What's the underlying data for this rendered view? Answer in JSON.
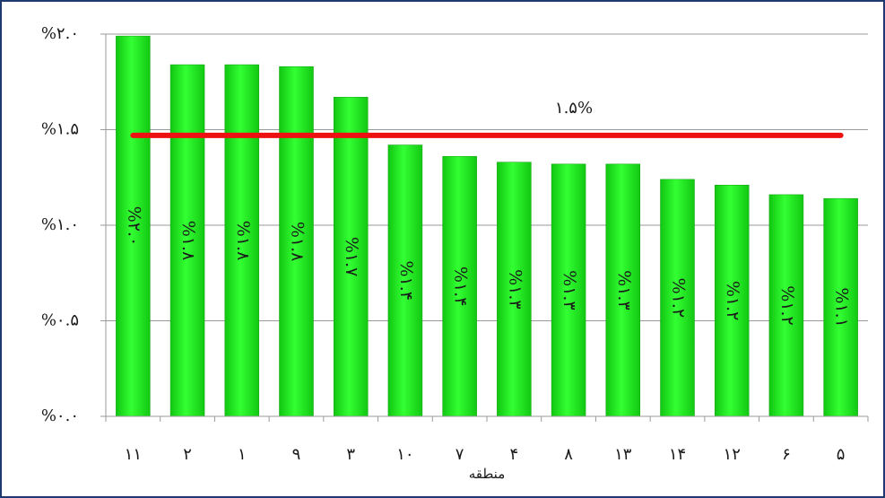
{
  "chart_data": {
    "type": "bar",
    "categories": [
      "۱۱",
      "۲",
      "۱",
      "۹",
      "۳",
      "۱۰",
      "۷",
      "۴",
      "۸",
      "۱۳",
      "۱۴",
      "۱۲",
      "۶",
      "۵"
    ],
    "values": [
      1.99,
      1.84,
      1.84,
      1.83,
      1.67,
      1.42,
      1.36,
      1.33,
      1.32,
      1.32,
      1.24,
      1.21,
      1.16,
      1.14
    ],
    "value_labels": [
      "%۲.۰",
      "%۱.۸",
      "%۱.۸",
      "%۱.۸",
      "%۱.۷",
      "%۱.۴",
      "%۱.۴",
      "%۱.۳",
      "%۱.۳",
      "%۱.۳",
      "%۱.۲",
      "%۱.۲",
      "%۱.۲",
      "%۱.۱"
    ],
    "color": "#22ee22",
    "xlabel": "منطقه",
    "ylim": [
      0,
      2.0
    ],
    "yticks": [
      {
        "value": 0,
        "label": "%۰.۰"
      },
      {
        "value": 0.5,
        "label": "%۰.۵"
      },
      {
        "value": 1.0,
        "label": "%۱.۰"
      },
      {
        "value": 1.5,
        "label": "%۱.۵"
      },
      {
        "value": 2.0,
        "label": "%۲.۰"
      }
    ],
    "grid": true,
    "reference_line": {
      "value": 1.47,
      "label": "۱.۵%",
      "color": "#ee1111"
    }
  }
}
